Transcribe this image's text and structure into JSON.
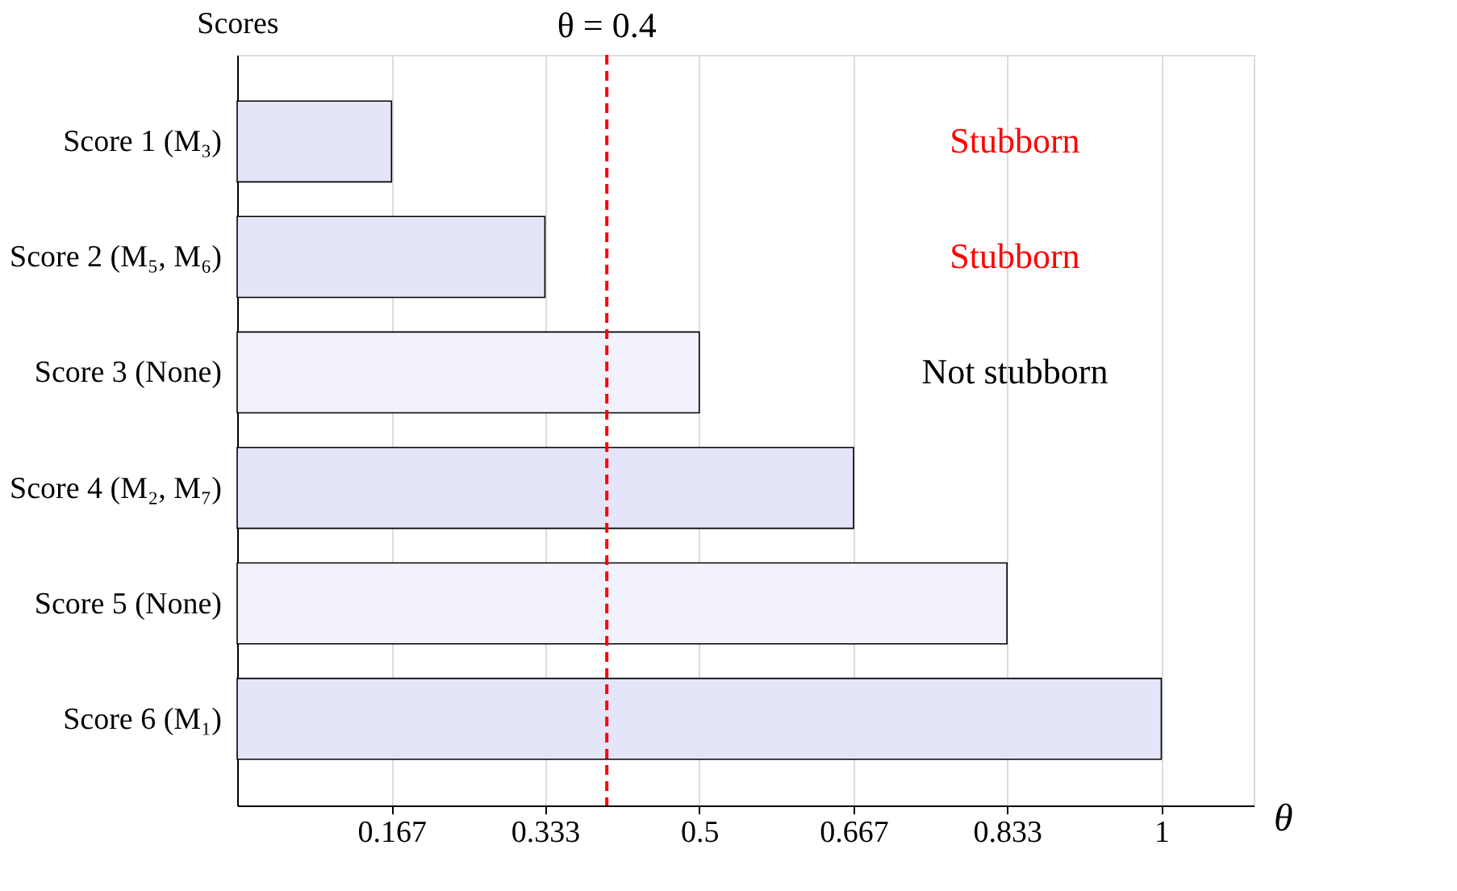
{
  "chart_data": {
    "type": "bar",
    "orientation": "horizontal",
    "xlabel": "θ",
    "ylabel": "Scores",
    "categories": [
      "Score 1 (M₃)",
      "Score 2 (M₅, M₆)",
      "Score 3 (None)",
      "Score 4 (M₂, M₇)",
      "Score 5 (None)",
      "Score 6 (M₁)"
    ],
    "values": [
      0.167,
      0.333,
      0.5,
      0.667,
      0.833,
      1
    ],
    "colors": [
      "#e5e5fa",
      "#e5e5fa",
      "#f2f2fc",
      "#e5e5fa",
      "#f2f2fc",
      "#e5e5fa"
    ],
    "xlim": [
      0,
      1.1
    ],
    "xticks": [
      0.167,
      0.333,
      0.5,
      0.667,
      0.833,
      1
    ],
    "grid": "x",
    "ref_lines": [
      {
        "axis": "x",
        "value": 0.4,
        "label": "θ = 0.4",
        "color": "#ff0000",
        "line_style": "dashed"
      }
    ],
    "annotations": [
      "Stubborn",
      "Stubborn",
      "Not stubborn"
    ]
  }
}
